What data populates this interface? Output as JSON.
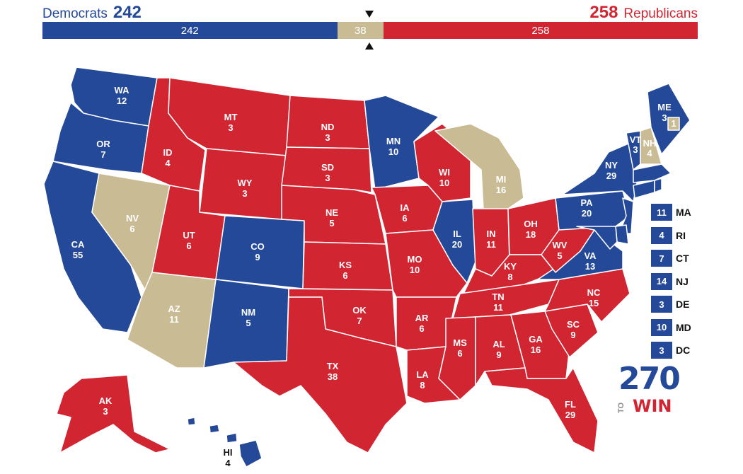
{
  "header": {
    "dem_name": "Democrats",
    "dem_total": "242",
    "rep_total": "258",
    "rep_name": "Republicans"
  },
  "bar": {
    "dem": 242,
    "tossup": 38,
    "rep": 258,
    "dem_label": "242",
    "tossup_label": "38",
    "rep_label": "258"
  },
  "colors": {
    "dem": "#244999",
    "rep": "#d22532",
    "tossup": "#c9bc94"
  },
  "states": [
    {
      "abbr": "WA",
      "ev": "12",
      "party": "dem"
    },
    {
      "abbr": "OR",
      "ev": "7",
      "party": "dem"
    },
    {
      "abbr": "CA",
      "ev": "55",
      "party": "dem"
    },
    {
      "abbr": "NV",
      "ev": "6",
      "party": "tossup"
    },
    {
      "abbr": "ID",
      "ev": "4",
      "party": "rep"
    },
    {
      "abbr": "MT",
      "ev": "3",
      "party": "rep"
    },
    {
      "abbr": "WY",
      "ev": "3",
      "party": "rep"
    },
    {
      "abbr": "UT",
      "ev": "6",
      "party": "rep"
    },
    {
      "abbr": "AZ",
      "ev": "11",
      "party": "tossup"
    },
    {
      "abbr": "CO",
      "ev": "9",
      "party": "dem"
    },
    {
      "abbr": "NM",
      "ev": "5",
      "party": "dem"
    },
    {
      "abbr": "ND",
      "ev": "3",
      "party": "rep"
    },
    {
      "abbr": "SD",
      "ev": "3",
      "party": "rep"
    },
    {
      "abbr": "NE",
      "ev": "5",
      "party": "rep"
    },
    {
      "abbr": "KS",
      "ev": "6",
      "party": "rep"
    },
    {
      "abbr": "OK",
      "ev": "7",
      "party": "rep"
    },
    {
      "abbr": "TX",
      "ev": "38",
      "party": "rep"
    },
    {
      "abbr": "MN",
      "ev": "10",
      "party": "dem"
    },
    {
      "abbr": "IA",
      "ev": "6",
      "party": "rep"
    },
    {
      "abbr": "MO",
      "ev": "10",
      "party": "rep"
    },
    {
      "abbr": "AR",
      "ev": "6",
      "party": "rep"
    },
    {
      "abbr": "LA",
      "ev": "8",
      "party": "rep"
    },
    {
      "abbr": "WI",
      "ev": "10",
      "party": "rep"
    },
    {
      "abbr": "IL",
      "ev": "20",
      "party": "dem"
    },
    {
      "abbr": "MI",
      "ev": "16",
      "party": "tossup"
    },
    {
      "abbr": "IN",
      "ev": "11",
      "party": "rep"
    },
    {
      "abbr": "OH",
      "ev": "18",
      "party": "rep"
    },
    {
      "abbr": "KY",
      "ev": "8",
      "party": "rep"
    },
    {
      "abbr": "TN",
      "ev": "11",
      "party": "rep"
    },
    {
      "abbr": "MS",
      "ev": "6",
      "party": "rep"
    },
    {
      "abbr": "AL",
      "ev": "9",
      "party": "rep"
    },
    {
      "abbr": "GA",
      "ev": "16",
      "party": "rep"
    },
    {
      "abbr": "FL",
      "ev": "29",
      "party": "rep"
    },
    {
      "abbr": "SC",
      "ev": "9",
      "party": "rep"
    },
    {
      "abbr": "NC",
      "ev": "15",
      "party": "rep"
    },
    {
      "abbr": "VA",
      "ev": "13",
      "party": "dem"
    },
    {
      "abbr": "WV",
      "ev": "5",
      "party": "rep"
    },
    {
      "abbr": "PA",
      "ev": "20",
      "party": "dem"
    },
    {
      "abbr": "NY",
      "ev": "29",
      "party": "dem"
    },
    {
      "abbr": "VT",
      "ev": "3",
      "party": "dem"
    },
    {
      "abbr": "NH",
      "ev": "4",
      "party": "tossup"
    },
    {
      "abbr": "ME",
      "ev": "3",
      "party": "dem"
    },
    {
      "abbr": "ME2",
      "ev": "1",
      "party": "tossup"
    },
    {
      "abbr": "AK",
      "ev": "3",
      "party": "rep"
    },
    {
      "abbr": "HI",
      "ev": "4",
      "party": "dem"
    }
  ],
  "small_states": [
    {
      "ev": "11",
      "abbr": "MA"
    },
    {
      "ev": "4",
      "abbr": "RI"
    },
    {
      "ev": "7",
      "abbr": "CT"
    },
    {
      "ev": "14",
      "abbr": "NJ"
    },
    {
      "ev": "3",
      "abbr": "DE"
    },
    {
      "ev": "10",
      "abbr": "MD"
    },
    {
      "ev": "3",
      "abbr": "DC"
    }
  ],
  "logo": {
    "number": "270",
    "to": "TO",
    "win": "WIN"
  }
}
